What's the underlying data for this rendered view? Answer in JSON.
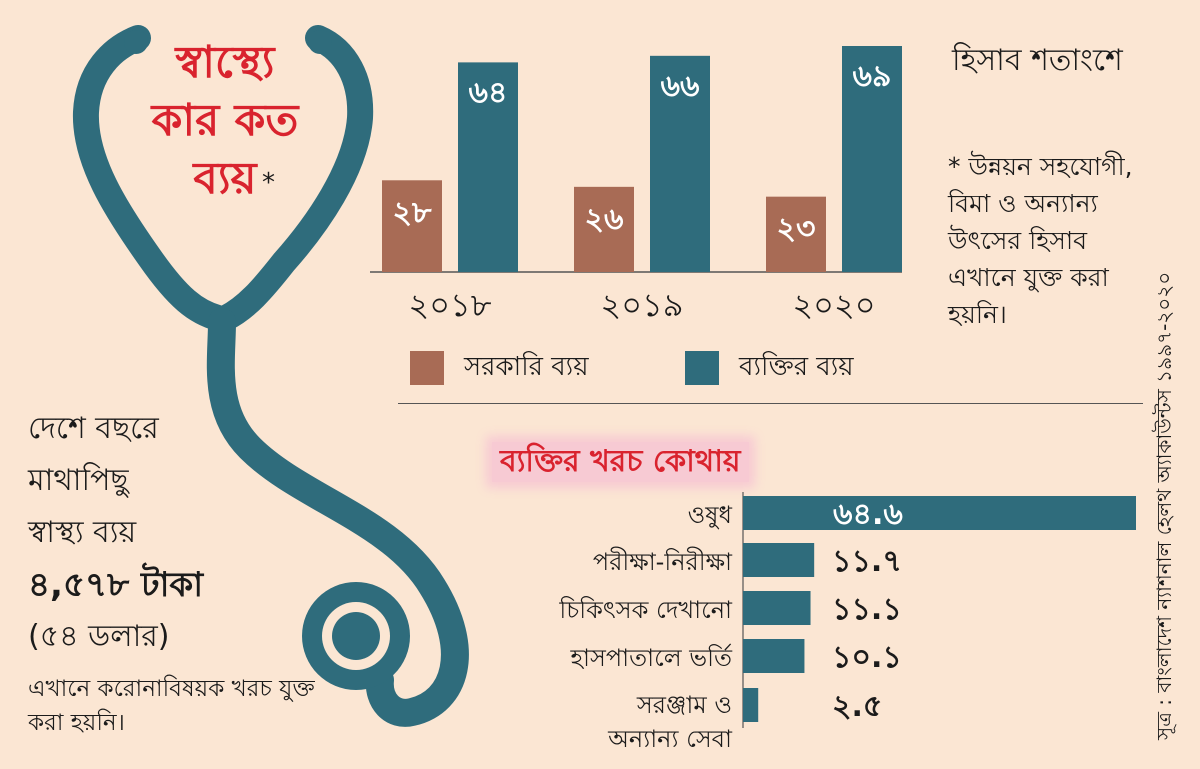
{
  "title_lines": [
    "স্বাস্থ্যে",
    "কার কত",
    "ব্যয়"
  ],
  "title_asterisk": "*",
  "unit_note": "হিসাব শতাংশে",
  "side_note": "* উন্নয়ন সহযোগী, বিমা ও অন্যান্য উৎসের হিসাব এখানে যুক্ত করা হয়নি।",
  "source_note": "সূত্র : বাংলাদেশ ন্যাশনাল হেলথ অ্যাকাউন্টস ১৯৯৭-২০২০",
  "per_capita": {
    "line1": "দেশে বছরে",
    "line2": "মাথাপিছু",
    "line3": "স্বাস্থ্য ব্যয়",
    "amount": "৪,৫৭৮ টাকা",
    "usd": "(৫৪ ডলার)",
    "note": "এখানে করোনাবিষয়ক খরচ যুক্ত করা হয়নি।"
  },
  "colors": {
    "background": "#fbe6d3",
    "government": "#a86b55",
    "private": "#2f6c7c",
    "title_red": "#d9232e",
    "stethoscope": "#2f6c7c"
  },
  "chart_data": [
    {
      "type": "bar",
      "categories": [
        "২০১৮",
        "২০১৯",
        "২০২০"
      ],
      "series": [
        {
          "name": "সরকারি ব্যয়",
          "values": [
            28,
            26,
            23
          ],
          "labels": [
            "২৮",
            "২৬",
            "২৩"
          ],
          "color": "#a86b55"
        },
        {
          "name": "ব্যক্তির ব্যয়",
          "values": [
            64,
            66,
            69
          ],
          "labels": [
            "৬৪",
            "৬৬",
            "৬৯"
          ],
          "color": "#2f6c7c"
        }
      ],
      "unit": "হিসাব শতাংশে",
      "legend": "bottom",
      "grid": false
    },
    {
      "type": "bar",
      "orientation": "horizontal",
      "title": "ব্যক্তির খরচ কোথায়",
      "categories": [
        "ওষুধ",
        "পরীক্ষা-নিরীক্ষা",
        "চিকিৎসক দেখানো",
        "হাসপাতালে ভর্তি",
        "সরঞ্জাম ও অন্যান্য সেবা"
      ],
      "category_lines": [
        [
          "ওষুধ"
        ],
        [
          "পরীক্ষা-নিরীক্ষা"
        ],
        [
          "চিকিৎসক দেখানো"
        ],
        [
          "হাসপাতালে ভর্তি"
        ],
        [
          "সরঞ্জাম ও",
          "অন্যান্য সেবা"
        ]
      ],
      "values": [
        64.6,
        11.7,
        11.1,
        10.1,
        2.5
      ],
      "value_labels": [
        "৬৪.৬",
        "১১.৭",
        "১১.১",
        "১০.১",
        "২.৫"
      ],
      "color": "#2f6c7c",
      "grid": false
    }
  ]
}
